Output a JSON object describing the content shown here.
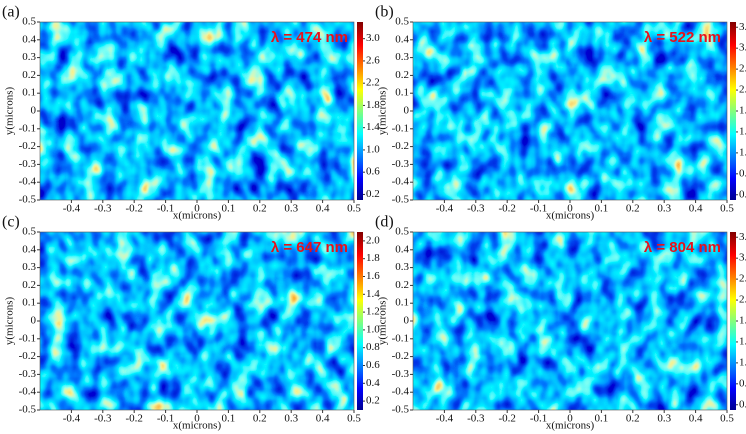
{
  "chart_data": [
    {
      "type": "heatmap",
      "panel_label": "(a)",
      "annotation": "λ = 474 nm",
      "x_label": "x(microns)",
      "y_label": "y(microns)",
      "xlim": [
        -0.5,
        0.5
      ],
      "xticks": [
        -0.4,
        -0.3,
        -0.2,
        -0.1,
        0,
        0.1,
        0.2,
        0.3,
        0.4,
        0.5
      ],
      "ylim": [
        -0.5,
        0.5
      ],
      "yticks": [
        -0.5,
        -0.4,
        -0.3,
        -0.2,
        -0.1,
        0,
        0.1,
        0.2,
        0.3,
        0.4,
        0.5
      ],
      "clim": [
        0.1,
        3.3
      ],
      "cticks": [
        0.2,
        0.6,
        {
          "value": 1.0,
          "label": "1.0"
        },
        1.4,
        1.8,
        2.2,
        2.6,
        {
          "value": 3.0,
          "label": "3.0"
        }
      ],
      "colormap": "jet"
    },
    {
      "type": "heatmap",
      "panel_label": "(b)",
      "annotation": "λ = 522 nm",
      "x_label": "x(microns)",
      "y_label": "y(microns)",
      "xlim": [
        -0.5,
        0.5
      ],
      "xticks": [
        -0.4,
        -0.3,
        -0.2,
        -0.1,
        0,
        0.1,
        0.2,
        0.3,
        0.4,
        0.5
      ],
      "ylim": [
        -0.5,
        0.5
      ],
      "yticks": [
        -0.5,
        -0.4,
        -0.3,
        -0.2,
        -0.1,
        0,
        0.1,
        0.2,
        0.3,
        0.4,
        0.5
      ],
      "clim": [
        0.1,
        3.5
      ],
      "cticks": [
        0.2,
        0.6,
        {
          "value": 1.0,
          "label": "1.0"
        },
        1.4,
        1.8,
        2.2,
        2.6,
        {
          "value": 3.0,
          "label": "3.0"
        },
        3.4
      ],
      "colormap": "jet"
    },
    {
      "type": "heatmap",
      "panel_label": "(c)",
      "annotation": "λ = 647 nm",
      "x_label": "x(microns)",
      "y_label": "y(microns)",
      "xlim": [
        -0.5,
        0.5
      ],
      "xticks": [
        -0.4,
        -0.3,
        -0.2,
        -0.1,
        0,
        0.1,
        0.2,
        0.3,
        0.4,
        0.5
      ],
      "ylim": [
        -0.5,
        0.5
      ],
      "yticks": [
        -0.5,
        -0.4,
        -0.3,
        -0.2,
        -0.1,
        0,
        0.1,
        0.2,
        0.3,
        0.4,
        0.5
      ],
      "clim": [
        0.1,
        2.1
      ],
      "cticks": [
        0.2,
        0.4,
        0.6,
        0.8,
        {
          "value": 1.0,
          "label": "1.0"
        },
        1.2,
        1.4,
        1.6,
        1.8,
        {
          "value": 2.0,
          "label": "2.0"
        }
      ],
      "colormap": "jet"
    },
    {
      "type": "heatmap",
      "panel_label": "(d)",
      "annotation": "λ = 804 nm",
      "x_label": "x(microns)",
      "y_label": "y(microns)",
      "xlim": [
        -0.5,
        0.5
      ],
      "xticks": [
        -0.4,
        -0.3,
        -0.2,
        -0.1,
        0,
        0.1,
        0.2,
        0.3,
        0.4,
        0.5
      ],
      "ylim": [
        -0.5,
        0.5
      ],
      "yticks": [
        -0.5,
        -0.4,
        -0.3,
        -0.2,
        -0.1,
        0,
        0.1,
        0.2,
        0.3,
        0.4,
        0.5
      ],
      "clim": [
        0.2,
        3.6
      ],
      "cticks": [
        0.3,
        0.7,
        1.1,
        1.5,
        1.9,
        2.3,
        2.7,
        3.1,
        3.5
      ],
      "colormap": "jet"
    }
  ]
}
